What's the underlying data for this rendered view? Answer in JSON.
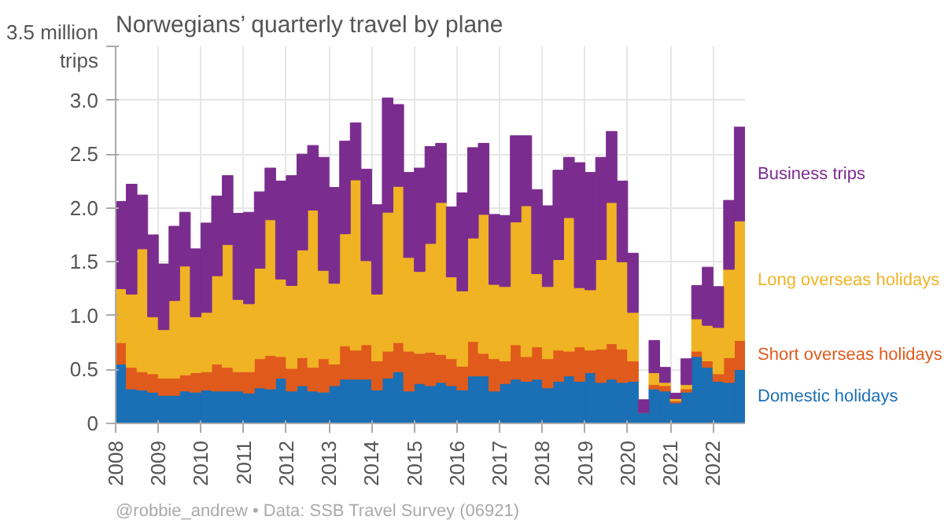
{
  "chart_data": {
    "type": "bar",
    "stacked": true,
    "title": "Norwegians’ quarterly travel by plane",
    "x": [
      2008.125,
      2008.375,
      2008.625,
      2008.875,
      2009.125,
      2009.375,
      2009.625,
      2009.875,
      2010.125,
      2010.375,
      2010.625,
      2010.875,
      2011.125,
      2011.375,
      2011.625,
      2011.875,
      2012.125,
      2012.375,
      2012.625,
      2012.875,
      2013.125,
      2013.375,
      2013.625,
      2013.875,
      2014.125,
      2014.375,
      2014.625,
      2014.875,
      2015.125,
      2015.375,
      2015.625,
      2015.875,
      2016.125,
      2016.375,
      2016.625,
      2016.875,
      2017.125,
      2017.375,
      2017.625,
      2017.875,
      2018.125,
      2018.375,
      2018.625,
      2018.875,
      2019.125,
      2019.375,
      2019.625,
      2019.875,
      2020.125,
      2020.375,
      2020.625,
      2020.875,
      2021.125,
      2021.375,
      2021.625,
      2021.875,
      2022.125,
      2022.375,
      2022.625
    ],
    "series": [
      {
        "name": "Domestic holidays",
        "color": "#1a6fb5",
        "values": [
          0.55,
          0.32,
          0.31,
          0.29,
          0.26,
          0.26,
          0.3,
          0.29,
          0.31,
          0.3,
          0.3,
          0.3,
          0.28,
          0.33,
          0.32,
          0.42,
          0.3,
          0.35,
          0.3,
          0.29,
          0.35,
          0.41,
          0.41,
          0.41,
          0.31,
          0.42,
          0.48,
          0.3,
          0.37,
          0.35,
          0.38,
          0.35,
          0.31,
          0.44,
          0.44,
          0.3,
          0.37,
          0.41,
          0.39,
          0.41,
          0.33,
          0.39,
          0.44,
          0.39,
          0.47,
          0.38,
          0.41,
          0.38,
          0.39,
          0.1,
          0.32,
          0.3,
          0.19,
          0.29,
          0.62,
          0.52,
          0.39,
          0.38,
          0.5
        ]
      },
      {
        "name": "Short overseas holidays",
        "color": "#e05a1c",
        "values": [
          0.2,
          0.2,
          0.17,
          0.17,
          0.16,
          0.16,
          0.15,
          0.18,
          0.17,
          0.25,
          0.22,
          0.18,
          0.2,
          0.27,
          0.31,
          0.2,
          0.21,
          0.26,
          0.22,
          0.31,
          0.2,
          0.31,
          0.27,
          0.32,
          0.27,
          0.25,
          0.27,
          0.37,
          0.28,
          0.31,
          0.26,
          0.25,
          0.22,
          0.32,
          0.21,
          0.3,
          0.21,
          0.32,
          0.23,
          0.3,
          0.27,
          0.29,
          0.23,
          0.32,
          0.21,
          0.31,
          0.33,
          0.31,
          0.19,
          0.0,
          0.04,
          0.05,
          0.02,
          0.03,
          0.05,
          0.06,
          0.07,
          0.23,
          0.27
        ]
      },
      {
        "name": "Long overseas holidays",
        "color": "#f0b323",
        "values": [
          0.5,
          0.68,
          1.14,
          0.53,
          0.45,
          0.72,
          1.01,
          0.52,
          0.55,
          0.82,
          1.14,
          0.67,
          0.63,
          0.84,
          1.26,
          0.72,
          0.77,
          1.0,
          1.46,
          0.82,
          0.75,
          1.04,
          1.58,
          0.78,
          0.62,
          1.29,
          1.45,
          0.87,
          0.76,
          1.01,
          1.41,
          0.76,
          0.7,
          0.96,
          1.29,
          0.69,
          0.69,
          1.14,
          1.4,
          0.68,
          0.67,
          0.84,
          1.24,
          0.55,
          0.56,
          0.83,
          1.31,
          0.81,
          0.45,
          0.0,
          0.11,
          0.03,
          0.02,
          0.04,
          0.3,
          0.33,
          0.43,
          0.82,
          1.11
        ]
      },
      {
        "name": "Business trips",
        "color": "#7b2c8f",
        "values": [
          0.81,
          1.02,
          0.5,
          0.76,
          0.61,
          0.69,
          0.5,
          0.63,
          0.83,
          0.74,
          0.64,
          0.8,
          0.85,
          0.71,
          0.48,
          0.91,
          1.02,
          0.89,
          0.6,
          1.05,
          0.89,
          0.86,
          0.53,
          0.85,
          0.83,
          1.06,
          0.76,
          0.79,
          0.96,
          0.9,
          0.55,
          0.65,
          0.91,
          0.84,
          0.66,
          0.65,
          0.66,
          0.8,
          0.65,
          0.78,
          0.75,
          0.83,
          0.56,
          1.16,
          1.09,
          0.95,
          0.66,
          0.75,
          0.55,
          0.12,
          0.3,
          0.14,
          0.05,
          0.24,
          0.31,
          0.54,
          0.38,
          0.64,
          0.87
        ]
      }
    ],
    "xlim": [
      2008,
      2022.75
    ],
    "xticks": [
      2008,
      2009,
      2010,
      2011,
      2012,
      2013,
      2014,
      2015,
      2016,
      2017,
      2018,
      2019,
      2020,
      2021,
      2022
    ],
    "ylim": [
      0,
      3.5
    ],
    "yticks": [
      0,
      0.5,
      {
        "value": 1,
        "label": "1.0"
      },
      1.5,
      {
        "value": 2,
        "label": "2.0"
      },
      2.5,
      {
        "value": 3,
        "label": "3.0"
      },
      {
        "value": 3.5,
        "label": "3.5 million trips"
      }
    ],
    "grid": true,
    "annotations": [
      "@robbie_andrew  •  Data: SSB Travel Survey (06921)"
    ]
  }
}
